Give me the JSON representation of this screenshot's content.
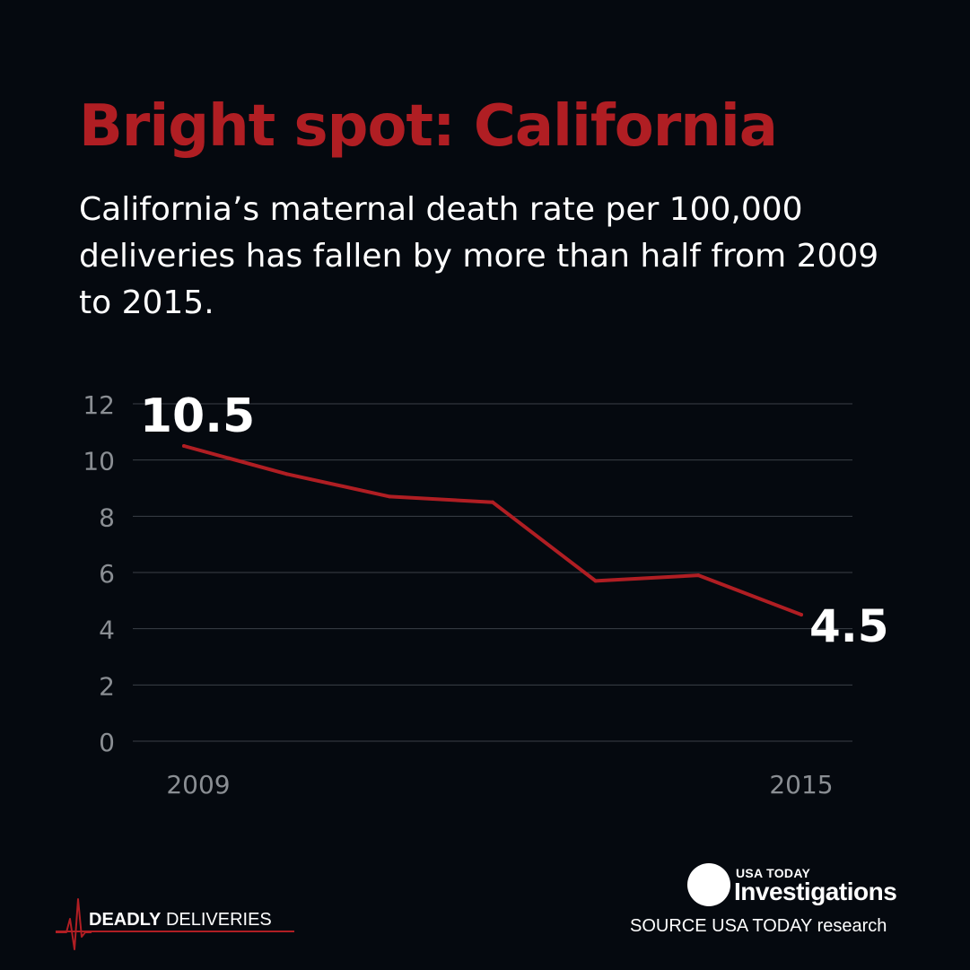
{
  "header": {
    "title": "Bright spot: California",
    "subtitle": "California’s maternal death rate per 100,000 deliveries has fallen by more than half from 2009 to 2015."
  },
  "chart_data": {
    "type": "line",
    "title": "Bright spot: California",
    "subtitle": "California’s maternal death rate per 100,000 deliveries has fallen by more than half from 2009 to 2015.",
    "x": [
      2009,
      2010,
      2011,
      2012,
      2013,
      2014,
      2015
    ],
    "x_tick_labels": [
      "2009",
      "2015"
    ],
    "y_ticks": [
      0,
      2,
      4,
      6,
      8,
      10,
      12
    ],
    "ylim": [
      0,
      12
    ],
    "grid": true,
    "xlabel": "",
    "ylabel": "",
    "series": [
      {
        "name": "California maternal death rate per 100,000 deliveries",
        "values": [
          10.5,
          9.5,
          8.7,
          8.5,
          5.7,
          5.9,
          4.5
        ],
        "color": "#b01e23"
      }
    ],
    "annotations": [
      {
        "text": "10.5",
        "x": 2009,
        "value": 10.5
      },
      {
        "text": "4.5",
        "x": 2015,
        "value": 4.5
      }
    ]
  },
  "colors": {
    "background": "#05090f",
    "accent": "#b01e23",
    "grid": "#3b4047",
    "tick_label": "#8a8e93",
    "text": "#ffffff"
  },
  "footer": {
    "brand_strong": "DEADLY",
    "brand_light": "DELIVERIES",
    "brand_icon": "heartbeat-pulse-icon",
    "logo_top": "USA TODAY",
    "logo_main": "Investigations",
    "source": "SOURCE USA TODAY research"
  }
}
